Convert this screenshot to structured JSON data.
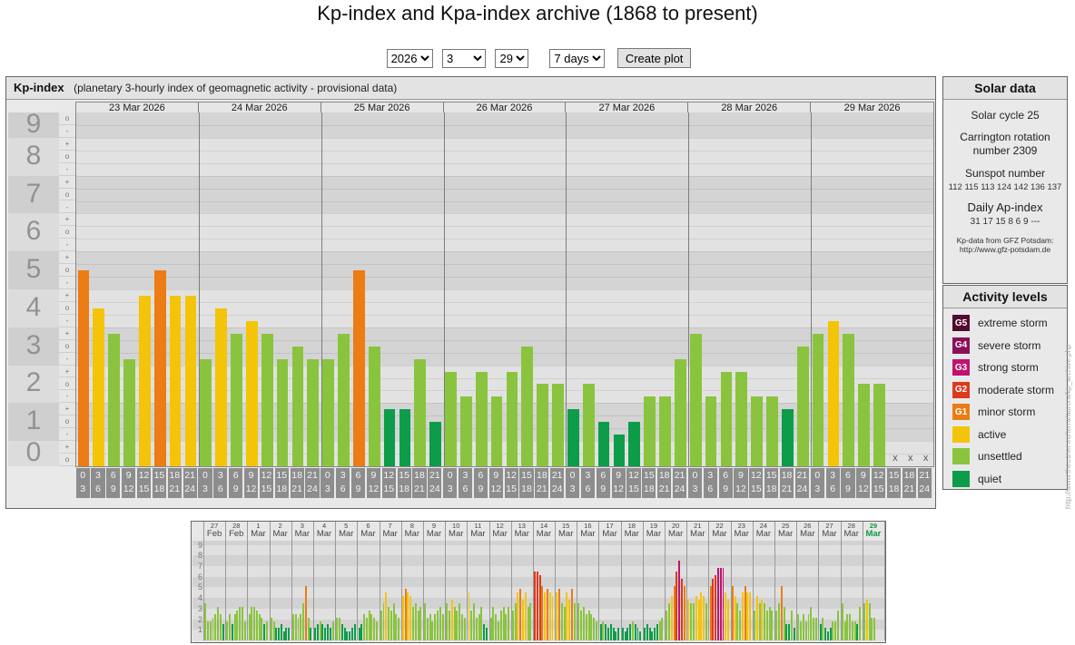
{
  "page_title": "Kp-index and Kpa-index archive (1868 to present)",
  "controls": {
    "year": "2026",
    "month": "3",
    "day": "29",
    "range": "7 days",
    "create_button": "Create plot"
  },
  "main_panel": {
    "heading": "Kp-index",
    "subtitle": "(planetary 3-hourly index of geomagnetic activity - provisional data)",
    "missing_marker": "x"
  },
  "colors": {
    "g5": "#520c2f",
    "g4": "#8a1158",
    "g3": "#c0136e",
    "g2": "#dc3a1d",
    "g1": "#ec7c14",
    "active": "#f4c409",
    "unsettled": "#8ac43e",
    "quiet": "#0d9c49",
    "band_dark": "#d4d4d4",
    "band_light": "#e2e2e2",
    "axis_band_dark": "#cfcfcf",
    "axis_band_light": "#dcdcdc",
    "bin_label_bg": "#8d8d8d",
    "highlight_day": "#0f9a3c"
  },
  "y_axis": {
    "bands": [
      {
        "label": "9",
        "ticks": [
          "o",
          "-"
        ]
      },
      {
        "label": "8",
        "ticks": [
          "+",
          "o",
          "-"
        ]
      },
      {
        "label": "7",
        "ticks": [
          "+",
          "o",
          "-"
        ]
      },
      {
        "label": "6",
        "ticks": [
          "+",
          "o",
          "-"
        ]
      },
      {
        "label": "5",
        "ticks": [
          "+",
          "o",
          "-"
        ]
      },
      {
        "label": "4",
        "ticks": [
          "+",
          "o",
          "-"
        ]
      },
      {
        "label": "3",
        "ticks": [
          "+",
          "o",
          "-"
        ]
      },
      {
        "label": "2",
        "ticks": [
          "+",
          "o",
          "-"
        ]
      },
      {
        "label": "1",
        "ticks": [
          "+",
          "o",
          "-"
        ]
      },
      {
        "label": "0",
        "ticks": [
          "+",
          "o"
        ]
      }
    ]
  },
  "chart_data": [
    {
      "id": "kp-week",
      "type": "bar",
      "title": "Kp-index 23-29 Mar 2026",
      "ylabel": "Kp",
      "ylim": [
        0,
        9.33
      ],
      "bin_labels": [
        [
          "0",
          "3"
        ],
        [
          "3",
          "6"
        ],
        [
          "6",
          "9"
        ],
        [
          "9",
          "12"
        ],
        [
          "12",
          "15"
        ],
        [
          "15",
          "18"
        ],
        [
          "18",
          "21"
        ],
        [
          "21",
          "24"
        ]
      ],
      "days": [
        {
          "date": "23 Mar 2026",
          "values": [
            5,
            4,
            3.33,
            2.67,
            4.33,
            5,
            4.33,
            4.33
          ],
          "labels": [
            "5o",
            "4o",
            "3+",
            "3-",
            "4+",
            "5o",
            "4+",
            "4+"
          ]
        },
        {
          "date": "24 Mar 2026",
          "values": [
            2.67,
            4,
            3.33,
            3.67,
            3.33,
            2.67,
            3,
            2.67
          ],
          "labels": [
            "3-",
            "4o",
            "3+",
            "4-",
            "3+",
            "3-",
            "3o",
            "3-"
          ]
        },
        {
          "date": "25 Mar 2026",
          "values": [
            2.67,
            3.33,
            5,
            3,
            1.33,
            1.33,
            2.67,
            1
          ],
          "labels": [
            "3-",
            "3+",
            "5o",
            "3o",
            "1+",
            "1+",
            "3-",
            "1o"
          ]
        },
        {
          "date": "26 Mar 2026",
          "values": [
            2.33,
            1.67,
            2.33,
            1.67,
            2.33,
            3,
            2,
            2
          ],
          "labels": [
            "2+",
            "2-",
            "2+",
            "2-",
            "2+",
            "3o",
            "2o",
            "2o"
          ]
        },
        {
          "date": "27 Mar 2026",
          "values": [
            1.33,
            2,
            1,
            0.67,
            1,
            1.67,
            1.67,
            2.67
          ],
          "labels": [
            "1+",
            "2o",
            "1o",
            "1-",
            "1o",
            "2-",
            "2-",
            "3-"
          ]
        },
        {
          "date": "28 Mar 2026",
          "values": [
            3.33,
            1.67,
            2.33,
            2.33,
            1.67,
            1.67,
            1.33,
            3
          ],
          "labels": [
            "3+",
            "2-",
            "2+",
            "2+",
            "2-",
            "2-",
            "1+",
            "3o"
          ]
        },
        {
          "date": "29 Mar 2026",
          "values": [
            3.33,
            3.67,
            3.33,
            2,
            2,
            null,
            null,
            null
          ],
          "labels": [
            "3+",
            "4-",
            "3+",
            "2o",
            "2o",
            "x",
            "x",
            "x"
          ]
        }
      ]
    },
    {
      "id": "kp-month",
      "type": "bar",
      "title": "Kp-index 27 Feb - 29 Mar 2026",
      "ylabel": "Kp",
      "ylim": [
        0,
        9.4
      ],
      "y_ticks": [
        "9",
        "8",
        "7",
        "6",
        "5",
        "4",
        "3",
        "2",
        "1"
      ],
      "days": [
        {
          "day": "27",
          "month": "Feb",
          "values": [
            3.33,
            1.67,
            1.67,
            2,
            2.33,
            3,
            2.33,
            1.33
          ]
        },
        {
          "day": "28",
          "month": "Feb",
          "values": [
            1.67,
            2.33,
            1.33,
            2.33,
            2.67,
            3,
            3,
            1.67
          ]
        },
        {
          "day": "1",
          "month": "Mar",
          "values": [
            2.33,
            3,
            3,
            2.67,
            2.33,
            2,
            1.33,
            1.67
          ]
        },
        {
          "day": "2",
          "month": "Mar",
          "values": [
            2,
            1.67,
            1,
            1,
            1.33,
            0.67,
            1,
            1
          ]
        },
        {
          "day": "3",
          "month": "Mar",
          "values": [
            2.33,
            2.33,
            2,
            2.33,
            3.33,
            5,
            2,
            1
          ]
        },
        {
          "day": "4",
          "month": "Mar",
          "values": [
            1,
            1.33,
            1.67,
            1.33,
            1,
            1.33,
            1,
            1.67
          ]
        },
        {
          "day": "5",
          "month": "Mar",
          "values": [
            2,
            2,
            1.33,
            1,
            0.67,
            0.67,
            1,
            1.33
          ]
        },
        {
          "day": "6",
          "month": "Mar",
          "values": [
            1,
            1.33,
            2.33,
            2,
            2.67,
            2.33,
            2,
            1.67
          ]
        },
        {
          "day": "7",
          "month": "Mar",
          "values": [
            2.67,
            3.33,
            4.33,
            3,
            2.67,
            3.33,
            2.33,
            2
          ]
        },
        {
          "day": "8",
          "month": "Mar",
          "values": [
            4,
            4.67,
            4.33,
            4,
            3,
            3.33,
            2.67,
            3
          ]
        },
        {
          "day": "9",
          "month": "Mar",
          "values": [
            3.33,
            2,
            2.33,
            1.67,
            2.33,
            2.67,
            3,
            2.33
          ]
        },
        {
          "day": "10",
          "month": "Mar",
          "values": [
            3.33,
            2.67,
            3.67,
            3,
            2.67,
            3.33,
            2.33,
            2
          ]
        },
        {
          "day": "11",
          "month": "Mar",
          "values": [
            4.33,
            2.67,
            3.33,
            2,
            2.33,
            3,
            1.33,
            1
          ]
        },
        {
          "day": "12",
          "month": "Mar",
          "values": [
            2,
            3,
            2.33,
            1.67,
            2.67,
            3,
            2.33,
            3
          ]
        },
        {
          "day": "13",
          "month": "Mar",
          "values": [
            2.67,
            3.33,
            4.33,
            4.67,
            3.67,
            4.33,
            3,
            3.33
          ]
        },
        {
          "day": "14",
          "month": "Mar",
          "values": [
            6.33,
            6.33,
            6,
            5,
            4.33,
            4.67,
            4.33,
            4
          ]
        },
        {
          "day": "15",
          "month": "Mar",
          "values": [
            4.33,
            4.67,
            3.33,
            3,
            4.33,
            3.67,
            4.67,
            3.33
          ]
        },
        {
          "day": "16",
          "month": "Mar",
          "values": [
            3.33,
            2.67,
            3,
            2.33,
            2.67,
            2.33,
            2,
            1.67
          ]
        },
        {
          "day": "17",
          "month": "Mar",
          "values": [
            1.33,
            1.67,
            1.33,
            1,
            1.33,
            1,
            0.67,
            1
          ]
        },
        {
          "day": "18",
          "month": "Mar",
          "values": [
            1,
            0.67,
            1,
            1.33,
            1.67,
            1.33,
            1,
            0.67
          ]
        },
        {
          "day": "19",
          "month": "Mar",
          "values": [
            1,
            1.33,
            1,
            0.67,
            1,
            1.33,
            1.67,
            2
          ]
        },
        {
          "day": "20",
          "month": "Mar",
          "values": [
            2.67,
            3.33,
            4,
            5,
            6.33,
            7.33,
            5.67,
            5
          ]
        },
        {
          "day": "21",
          "month": "Mar",
          "values": [
            3.67,
            3.33,
            3.33,
            4,
            3.67,
            4.33,
            4,
            3.33
          ]
        },
        {
          "day": "22",
          "month": "Mar",
          "values": [
            5,
            5.67,
            6,
            6.67,
            6.67,
            6.67,
            4.33,
            3.67
          ]
        },
        {
          "day": "23",
          "month": "Mar",
          "values": [
            5,
            4,
            3.33,
            2.67,
            4.33,
            5,
            4.33,
            4.33
          ]
        },
        {
          "day": "24",
          "month": "Mar",
          "values": [
            2.67,
            4,
            3.33,
            3.67,
            3.33,
            2.67,
            3,
            2.67
          ]
        },
        {
          "day": "25",
          "month": "Mar",
          "values": [
            2.67,
            3.33,
            5,
            3,
            1.33,
            1.33,
            2.67,
            1
          ]
        },
        {
          "day": "26",
          "month": "Mar",
          "values": [
            2.33,
            1.67,
            2.33,
            1.67,
            2.33,
            3,
            2,
            2
          ]
        },
        {
          "day": "27",
          "month": "Mar",
          "values": [
            1.33,
            2,
            1,
            0.67,
            1,
            1.67,
            1.67,
            2.67
          ]
        },
        {
          "day": "28",
          "month": "Mar",
          "values": [
            3.33,
            1.67,
            2.33,
            2.33,
            1.67,
            1.67,
            1.33,
            3
          ]
        },
        {
          "day": "29",
          "month": "Mar",
          "values": [
            3.33,
            3.67,
            3.33,
            2,
            2,
            null,
            null,
            null
          ],
          "highlight": true
        }
      ]
    }
  ],
  "solar_data": {
    "title": "Solar data",
    "cycle": "Solar cycle 25",
    "carrington": "Carrington rotation number 2309",
    "sunspot_label": "Sunspot number",
    "sunspot_values": "112  115  113  124  142  136  137",
    "ap_label": "Daily Ap-index",
    "ap_values": "31   17   15   8   6   9   ---",
    "source": "Kp-data from GFZ Potsdam:",
    "source_url": "http://www.gfz-potsdam.de"
  },
  "activity_levels": {
    "title": "Activity levels",
    "items": [
      {
        "code": "G5",
        "label": "extreme storm",
        "color_key": "g5"
      },
      {
        "code": "G4",
        "label": "severe storm",
        "color_key": "g4"
      },
      {
        "code": "G3",
        "label": "strong storm",
        "color_key": "g3"
      },
      {
        "code": "G2",
        "label": "moderate storm",
        "color_key": "g2"
      },
      {
        "code": "G1",
        "label": "minor storm",
        "color_key": "g1"
      },
      {
        "code": "",
        "label": "active",
        "color_key": "active"
      },
      {
        "code": "",
        "label": "unsettled",
        "color_key": "unsettled"
      },
      {
        "code": "",
        "label": "quiet",
        "color_key": "quiet"
      }
    ]
  },
  "watermark": "http://www.theusner.eu/terra/aurora/kp_archive.php"
}
